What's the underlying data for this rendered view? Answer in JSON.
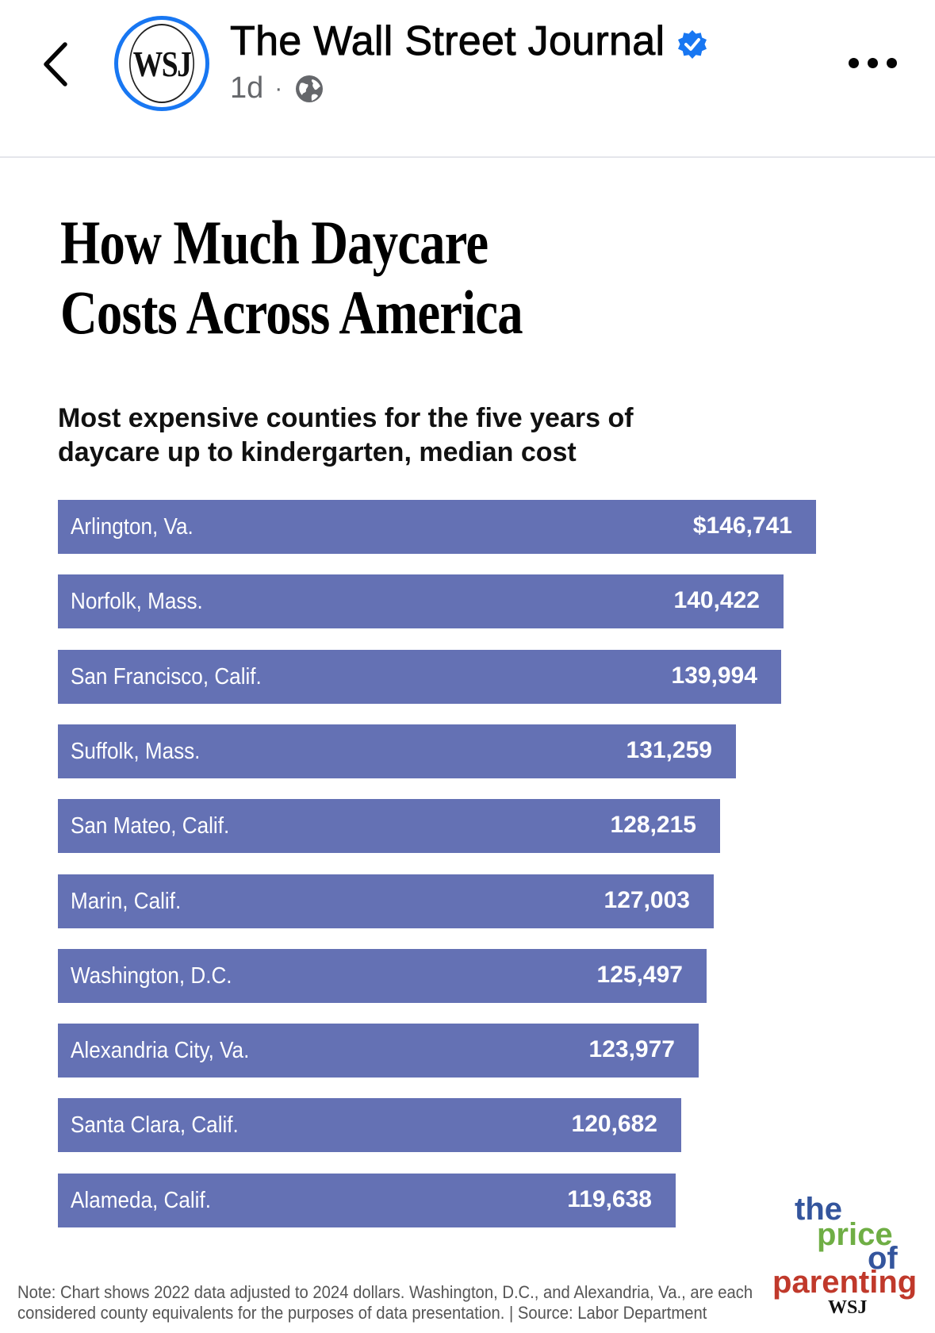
{
  "header": {
    "page_name": "The Wall Street Journal",
    "avatar_text": "WSJ",
    "time": "1d",
    "separator": "·",
    "accent_color": "#1877f2",
    "icons": [
      "back-arrow-icon",
      "verified-badge-icon",
      "globe-icon",
      "more-options-icon"
    ]
  },
  "graphic": {
    "title_line1": "How Much Daycare",
    "title_line2": "Costs Across America",
    "subtitle_line1": "Most expensive counties for the five years of",
    "subtitle_line2": "daycare up to kindergarten, median cost",
    "note_line1": "Note: Chart shows 2022 data adjusted to 2024 dollars. Washington, D.C., and Alexandria, Va., are each",
    "note_line2": "considered county equivalents for the purposes of data presentation. | Source: Labor Department",
    "logo": {
      "the": "the",
      "price": "price",
      "of": "of",
      "parenting": "parenting",
      "brand": "WSJ"
    }
  },
  "chart_data": {
    "type": "bar",
    "orientation": "horizontal",
    "bar_color": "#6471b4",
    "categories": [
      "Arlington, Va.",
      "Norfolk, Mass.",
      "San Francisco, Calif.",
      "Suffolk, Mass.",
      "San Mateo, Calif.",
      "Marin, Calif.",
      "Washington, D.C.",
      "Alexandria City, Va.",
      "Santa Clara, Calif.",
      "Alameda, Calif."
    ],
    "values": [
      146741,
      140422,
      139994,
      131259,
      128215,
      127003,
      125497,
      123977,
      120682,
      119638
    ],
    "value_labels": [
      "$146,741",
      "140,422",
      "139,994",
      "131,259",
      "128,215",
      "127,003",
      "125,497",
      "123,977",
      "120,682",
      "119,638"
    ],
    "title": "How Much Daycare Costs Across America",
    "xlabel": "",
    "ylabel": "",
    "grid": false
  }
}
